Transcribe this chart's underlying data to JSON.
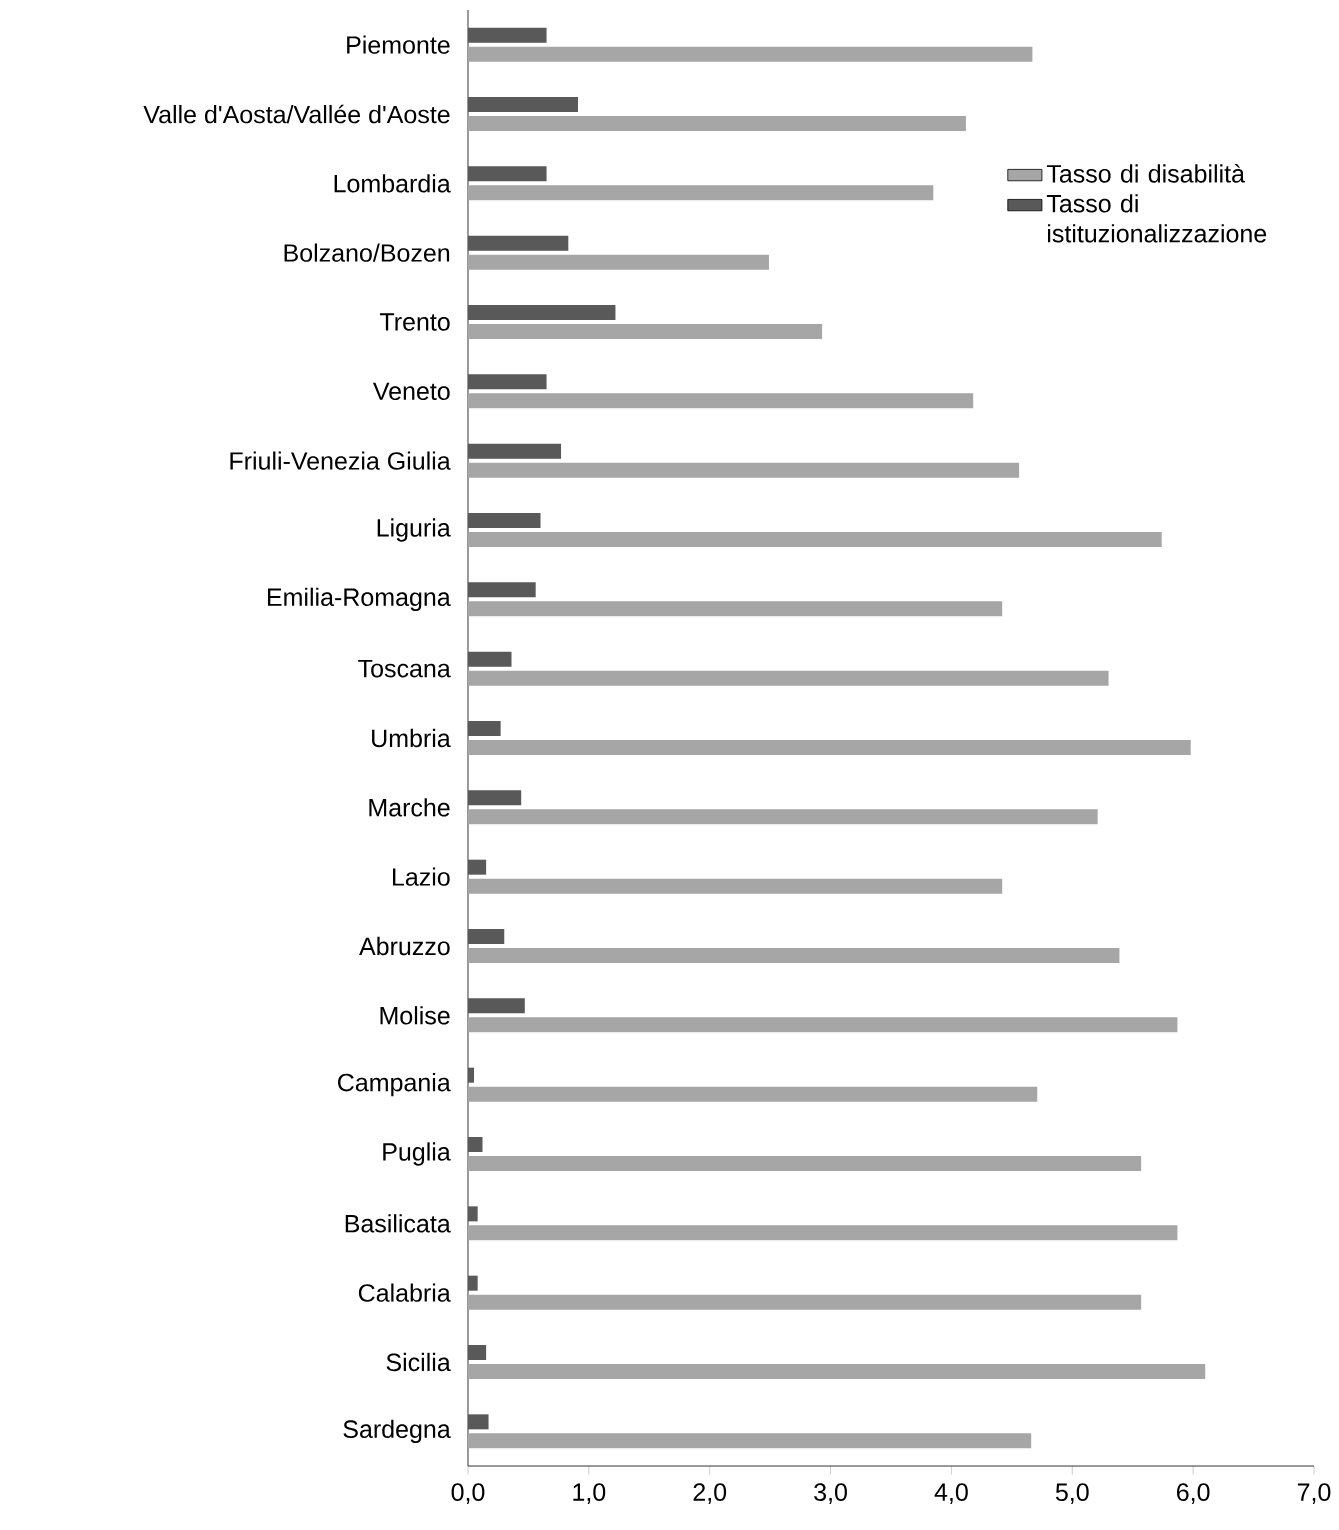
{
  "chart_data": {
    "type": "bar",
    "orientation": "horizontal",
    "categories": [
      "Piemonte",
      "Valle d'Aosta/Vallée d'Aoste",
      "Lombardia",
      "Bolzano/Bozen",
      "Trento",
      "Veneto",
      "Friuli-Venezia Giulia",
      "Liguria",
      "Emilia-Romagna",
      "Toscana",
      "Umbria",
      "Marche",
      "Lazio",
      "Abruzzo",
      "Molise",
      "Campania",
      "Puglia",
      "Basilicata",
      "Calabria",
      "Sicilia",
      "Sardegna"
    ],
    "series": [
      {
        "name": "Tasso di disabilità",
        "color": "#a6a6a6",
        "values": [
          4.67,
          4.12,
          3.85,
          2.49,
          2.93,
          4.18,
          4.56,
          5.74,
          4.42,
          5.3,
          5.98,
          5.21,
          4.42,
          5.39,
          5.87,
          4.71,
          5.57,
          5.87,
          5.57,
          6.1,
          4.66
        ]
      },
      {
        "name": "Tasso di istituzionalizzazione",
        "color": "#595959",
        "values": [
          0.65,
          0.91,
          0.65,
          0.83,
          1.22,
          0.65,
          0.77,
          0.6,
          0.56,
          0.36,
          0.27,
          0.44,
          0.15,
          0.3,
          0.47,
          0.05,
          0.12,
          0.08,
          0.08,
          0.15,
          0.17
        ]
      }
    ],
    "xlim": [
      0,
      7
    ],
    "xticks": [
      {
        "value": 0,
        "label": "0,0"
      },
      {
        "value": 1,
        "label": "1,0"
      },
      {
        "value": 2,
        "label": "2,0"
      },
      {
        "value": 3,
        "label": "3,0"
      },
      {
        "value": 4,
        "label": "4,0"
      },
      {
        "value": 5,
        "label": "5,0"
      },
      {
        "value": 6,
        "label": "6,0"
      },
      {
        "value": 7,
        "label": "7,0"
      }
    ],
    "legend": "top right",
    "grid": false
  }
}
